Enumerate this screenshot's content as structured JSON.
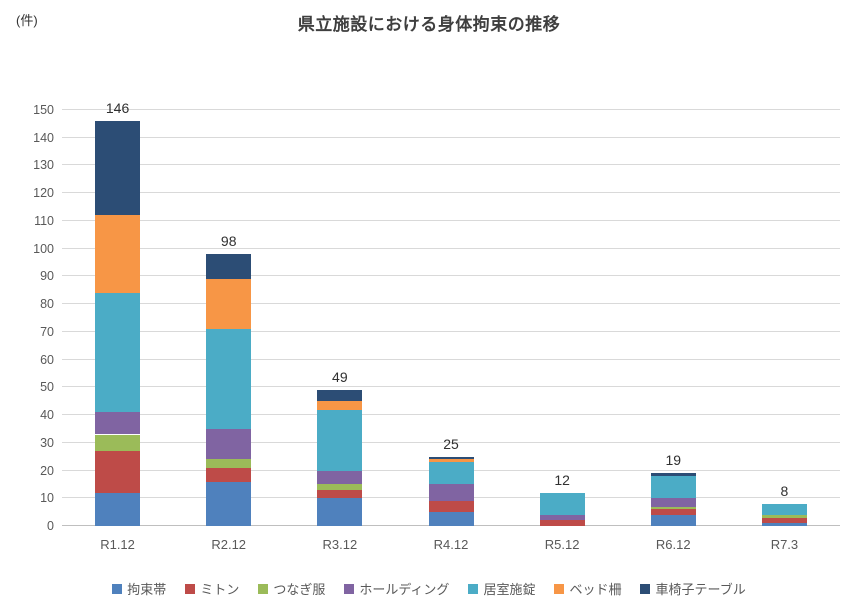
{
  "unit_label": "(件)",
  "title": "県立施設における身体拘束の推移",
  "chart_data": {
    "type": "bar",
    "stacked": true,
    "title": "県立施設における身体拘束の推移",
    "unit_label": "(件)",
    "categories": [
      "R1.12",
      "R2.12",
      "R3.12",
      "R4.12",
      "R5.12",
      "R6.12",
      "R7.3"
    ],
    "totals": [
      146,
      98,
      49,
      25,
      12,
      19,
      8
    ],
    "series": [
      {
        "name": "拘束帯",
        "color": "#4f81bd",
        "values": [
          12,
          16,
          10,
          5,
          0,
          4,
          1
        ]
      },
      {
        "name": "ミトン",
        "color": "#be4b48",
        "values": [
          15,
          5,
          3,
          4,
          2,
          2,
          2
        ]
      },
      {
        "name": "つなぎ服",
        "color": "#9bbb59",
        "values": [
          6,
          3,
          2,
          0,
          0,
          1,
          1
        ]
      },
      {
        "name": "ホールディング",
        "color": "#8064a2",
        "values": [
          8,
          11,
          5,
          6,
          2,
          3,
          0
        ]
      },
      {
        "name": "居室施錠",
        "color": "#4bacc6",
        "values": [
          43,
          36,
          22,
          8,
          8,
          8,
          4
        ]
      },
      {
        "name": "ベッド柵",
        "color": "#f79646",
        "values": [
          28,
          18,
          3,
          1,
          0,
          0,
          0
        ]
      },
      {
        "name": "車椅子テーブル",
        "color": "#2c4d75",
        "values": [
          34,
          9,
          4,
          1,
          0,
          1,
          0
        ]
      }
    ],
    "ylim": [
      0,
      150
    ],
    "ytick_step": 10,
    "grid": true,
    "legend_position": "bottom"
  }
}
